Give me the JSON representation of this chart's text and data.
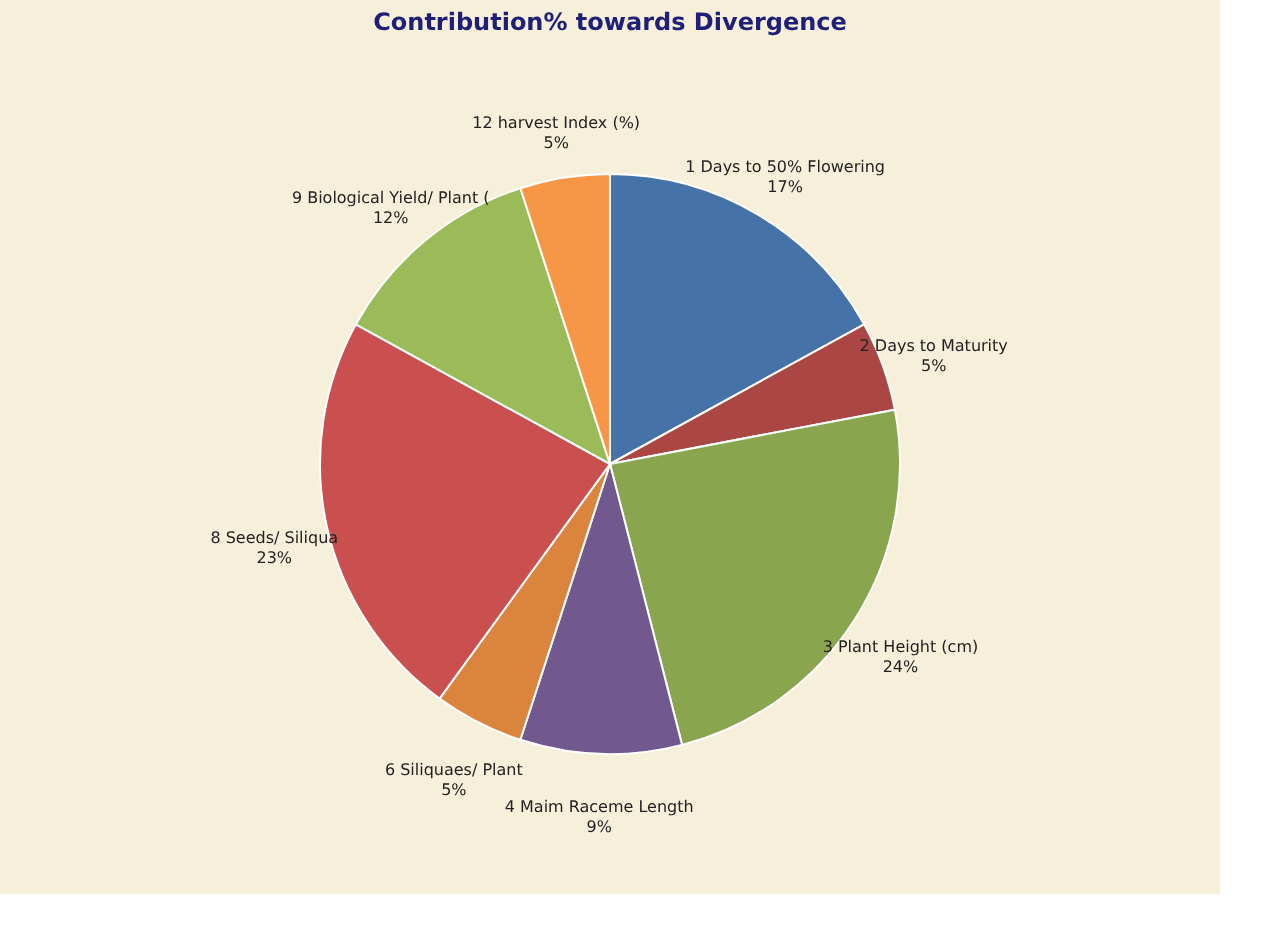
{
  "chart_data": {
    "type": "pie",
    "title": "Contribution% towards Divergence",
    "categories": [
      "1  Days to 50% Flowering",
      "2  Days to Maturity",
      "3  Plant Height (cm)",
      "4  Maim Raceme  Length",
      "6  Siliquaes/ Plant",
      "8  Seeds/ Siliqua",
      "9  Biological Yield/ Plant (",
      "12  harvest Index (%)"
    ],
    "values": [
      17,
      5,
      24,
      9,
      5,
      23,
      12,
      5
    ],
    "value_labels": [
      "17%",
      "5%",
      "24%",
      "9%",
      "5%",
      "23%",
      "12%",
      "5%"
    ],
    "colors": [
      "#4572a7",
      "#aa4643",
      "#89a54e",
      "#71588f",
      "#db843d",
      "#c9504f",
      "#9bbb59",
      "#f79646"
    ],
    "legend": false
  }
}
